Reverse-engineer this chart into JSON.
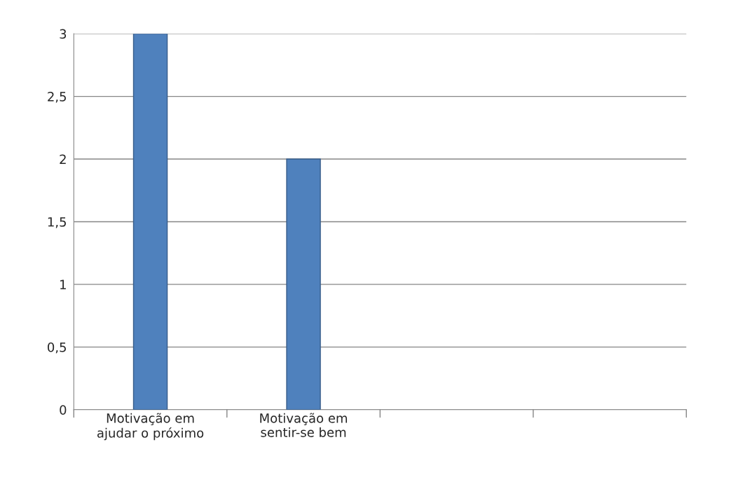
{
  "chart_data": {
    "type": "bar",
    "categories": [
      "Motivação em\najudar o próximo",
      "Motivação em\nsentir-se bem",
      null,
      null
    ],
    "values": [
      3,
      2,
      null,
      null
    ],
    "color": "#4f81bd",
    "ylim": [
      0,
      3
    ],
    "yticks": [
      0,
      {
        "value": 0.5,
        "label": "0,5"
      },
      1,
      {
        "value": 1.5,
        "label": "1,5"
      },
      2,
      {
        "value": 2.5,
        "label": "2,5"
      },
      3
    ],
    "grid": "y"
  }
}
